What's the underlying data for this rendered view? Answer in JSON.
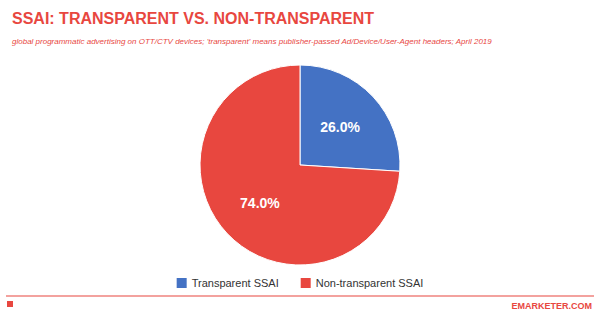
{
  "chart_data": {
    "type": "pie",
    "title": "SSAI: TRANSPARENT VS. NON-TRANSPARENT",
    "subtitle": "global programmatic advertising on OTT/CTV devices; 'transparent' means publisher-passed Ad/Device/User-Agent headers; April 2019",
    "categories": [
      "Transparent SSAI",
      "Non-transparent SSAI"
    ],
    "values": [
      26.0,
      74.0
    ],
    "value_labels": [
      "26.0%",
      "74.0%"
    ],
    "colors": [
      "#4472C4",
      "#E8473F"
    ],
    "data_labels": true,
    "legend": "bottom",
    "annotations": [
      "EMARKETER.COM"
    ]
  }
}
